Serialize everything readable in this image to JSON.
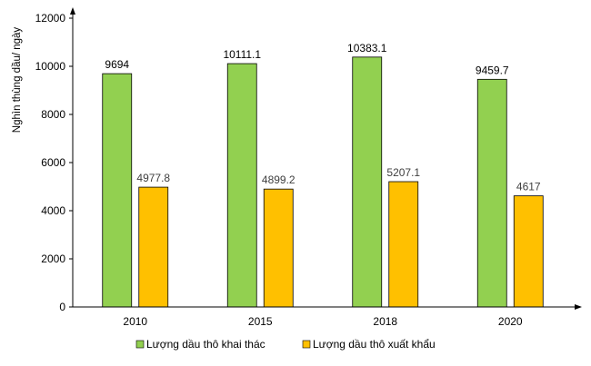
{
  "chart_data": {
    "type": "bar",
    "categories": [
      "2010",
      "2015",
      "2018",
      "2020"
    ],
    "series": [
      {
        "name": "Lượng dầu thô khai thác",
        "values": [
          9694,
          10111.1,
          10383.1,
          9459.7
        ],
        "labels": [
          "9694",
          "10111.1",
          "10383.1",
          "9459.7"
        ],
        "color": "#92D050"
      },
      {
        "name": "Lượng dầu thô xuất khẩu",
        "values": [
          4977.8,
          4899.2,
          5207.1,
          4617
        ],
        "labels": [
          "4977.8",
          "4899.2",
          "5207.1",
          "4617"
        ],
        "color": "#FFC000"
      }
    ],
    "ylabel": "Nghìn thùng dầu/ ngày",
    "xlabel": "",
    "ylim": [
      0,
      12000
    ],
    "yticks": [
      "0",
      "2000",
      "4000",
      "6000",
      "8000",
      "10000",
      "12000"
    ],
    "grid": false,
    "legend_position": "bottom"
  }
}
